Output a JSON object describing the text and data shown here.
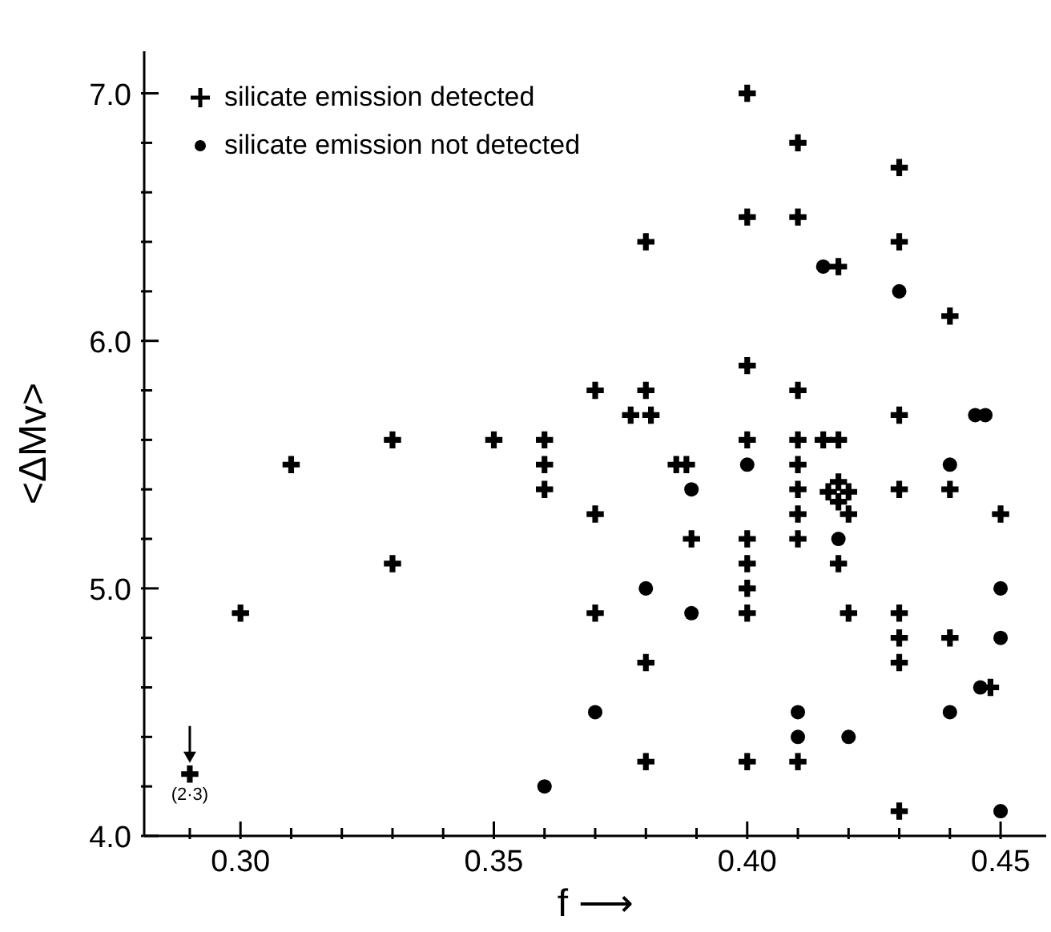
{
  "chart_data": {
    "type": "scatter",
    "xlabel": "f ⟶",
    "ylabel": "<ΔMv>",
    "xlim": [
      0.281,
      0.459
    ],
    "ylim": [
      4.0,
      7.17
    ],
    "xticks": [
      {
        "value": 0.29,
        "label": null
      },
      {
        "value": 0.3,
        "label": "0.30"
      },
      {
        "value": 0.31,
        "label": null
      },
      {
        "value": 0.32,
        "label": null
      },
      {
        "value": 0.33,
        "label": null
      },
      {
        "value": 0.34,
        "label": null
      },
      {
        "value": 0.35,
        "label": "0.35"
      },
      {
        "value": 0.36,
        "label": null
      },
      {
        "value": 0.37,
        "label": null
      },
      {
        "value": 0.38,
        "label": null
      },
      {
        "value": 0.39,
        "label": null
      },
      {
        "value": 0.4,
        "label": "0.40"
      },
      {
        "value": 0.41,
        "label": null
      },
      {
        "value": 0.42,
        "label": null
      },
      {
        "value": 0.43,
        "label": null
      },
      {
        "value": 0.44,
        "label": null
      },
      {
        "value": 0.45,
        "label": "0.45"
      }
    ],
    "yticks": [
      {
        "value": 4.0,
        "label": "4.0"
      },
      {
        "value": 4.2,
        "label": null
      },
      {
        "value": 4.4,
        "label": null
      },
      {
        "value": 4.6,
        "label": null
      },
      {
        "value": 4.8,
        "label": null
      },
      {
        "value": 5.0,
        "label": "5.0"
      },
      {
        "value": 5.2,
        "label": null
      },
      {
        "value": 5.4,
        "label": null
      },
      {
        "value": 5.6,
        "label": null
      },
      {
        "value": 5.8,
        "label": null
      },
      {
        "value": 6.0,
        "label": "6.0"
      },
      {
        "value": 6.2,
        "label": null
      },
      {
        "value": 6.4,
        "label": null
      },
      {
        "value": 6.6,
        "label": null
      },
      {
        "value": 6.8,
        "label": null
      },
      {
        "value": 7.0,
        "label": "7.0"
      }
    ],
    "legend": "top left",
    "annotations": [
      {
        "text": "(2·3)",
        "x": 0.29,
        "y": 4.25
      }
    ],
    "series": [
      {
        "name": "silicate emission detected",
        "color": "#000000",
        "marker": "cross",
        "x": [
          0.29,
          0.3,
          0.31,
          0.33,
          0.33,
          0.35,
          0.36,
          0.36,
          0.36,
          0.37,
          0.37,
          0.37,
          0.377,
          0.381,
          0.38,
          0.38,
          0.38,
          0.38,
          0.386,
          0.388,
          0.389,
          0.4,
          0.4,
          0.4,
          0.4,
          0.4,
          0.4,
          0.4,
          0.4,
          0.4,
          0.41,
          0.41,
          0.41,
          0.41,
          0.41,
          0.41,
          0.41,
          0.41,
          0.41,
          0.415,
          0.418,
          0.418,
          0.418,
          0.416,
          0.42,
          0.418,
          0.42,
          0.418,
          0.42,
          0.43,
          0.43,
          0.43,
          0.43,
          0.43,
          0.43,
          0.43,
          0.43,
          0.44,
          0.44,
          0.44,
          0.448,
          0.45
        ],
        "values": [
          4.25,
          4.9,
          5.5,
          5.6,
          5.1,
          5.6,
          5.6,
          5.5,
          5.4,
          5.8,
          5.3,
          4.9,
          5.7,
          5.7,
          6.4,
          5.8,
          4.7,
          4.3,
          5.5,
          5.5,
          5.2,
          7.0,
          6.5,
          5.9,
          5.6,
          5.2,
          5.1,
          5.0,
          4.9,
          4.3,
          6.8,
          6.5,
          5.8,
          5.6,
          5.5,
          5.4,
          5.3,
          5.2,
          4.3,
          5.6,
          5.6,
          6.3,
          5.43,
          5.39,
          5.39,
          5.35,
          5.3,
          5.1,
          4.9,
          6.7,
          6.4,
          5.7,
          5.4,
          4.9,
          4.8,
          4.7,
          4.1,
          6.1,
          5.4,
          4.8,
          4.6,
          5.3
        ]
      },
      {
        "name": "silicate emission not detected",
        "color": "#000000",
        "marker": "circle",
        "x": [
          0.415,
          0.43,
          0.445,
          0.447,
          0.4,
          0.44,
          0.389,
          0.418,
          0.38,
          0.45,
          0.389,
          0.45,
          0.446,
          0.37,
          0.41,
          0.44,
          0.41,
          0.42,
          0.36,
          0.45
        ],
        "values": [
          6.3,
          6.2,
          5.7,
          5.7,
          5.5,
          5.5,
          5.4,
          5.2,
          5.0,
          5.0,
          4.9,
          4.8,
          4.6,
          4.5,
          4.5,
          4.5,
          4.4,
          4.4,
          4.2,
          4.1
        ]
      }
    ]
  }
}
